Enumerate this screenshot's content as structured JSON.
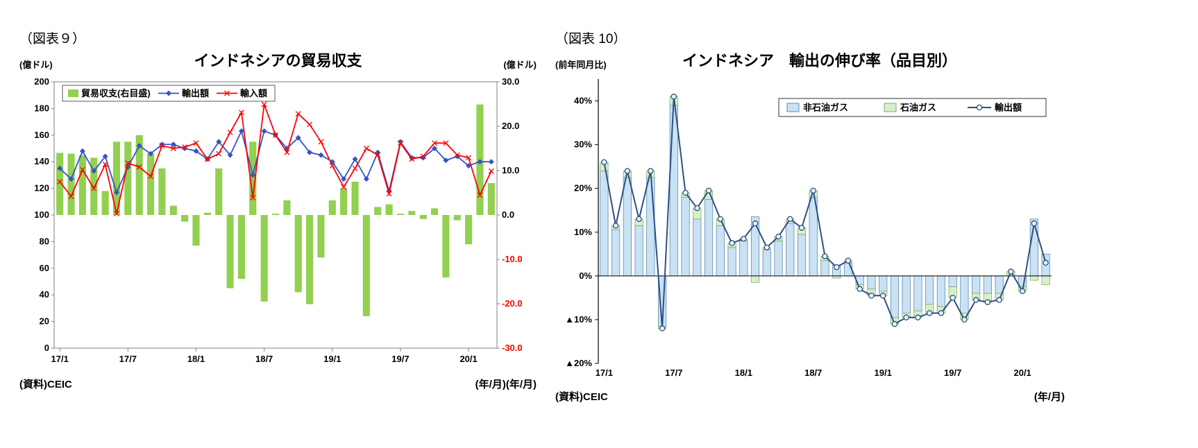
{
  "chart_data": [
    {
      "id": "trade-balance",
      "type": "combo-bar-line",
      "figure_label": "（図表９）",
      "title": "インドネシアの貿易収支",
      "left_axis": {
        "unit": "(億ドル)",
        "min": 0,
        "max": 200,
        "ticks": [
          0,
          20,
          40,
          60,
          80,
          100,
          120,
          140,
          160,
          180,
          200
        ]
      },
      "right_axis": {
        "unit": "(億ドル)",
        "min": -30,
        "max": 30,
        "ticks": [
          30,
          20,
          10,
          0,
          -10,
          -20,
          -30
        ],
        "negative_color": "#FF0000"
      },
      "categories": [
        "17/1",
        "17/2",
        "17/3",
        "17/4",
        "17/5",
        "17/6",
        "17/7",
        "17/8",
        "17/9",
        "17/10",
        "17/11",
        "17/12",
        "18/1",
        "18/2",
        "18/3",
        "18/4",
        "18/5",
        "18/6",
        "18/7",
        "18/8",
        "18/9",
        "18/10",
        "18/11",
        "18/12",
        "19/1",
        "19/2",
        "19/3",
        "19/4",
        "19/5",
        "19/6",
        "19/7",
        "19/8",
        "19/9",
        "19/10",
        "19/11",
        "19/12",
        "20/1",
        "20/2",
        "20/3"
      ],
      "x_ticks": [
        {
          "i": 0,
          "label": "17/1"
        },
        {
          "i": 6,
          "label": "17/7"
        },
        {
          "i": 12,
          "label": "18/1"
        },
        {
          "i": 18,
          "label": "18/7"
        },
        {
          "i": 24,
          "label": "19/1"
        },
        {
          "i": 30,
          "label": "19/7"
        },
        {
          "i": 36,
          "label": "20/1"
        }
      ],
      "series": [
        {
          "name": "貿易収支(右目盛)",
          "type": "bar",
          "axis": "right",
          "color": "#92D050",
          "values": [
            14.0,
            13.8,
            13.5,
            12.9,
            5.4,
            16.5,
            16.5,
            18.0,
            13.8,
            10.5,
            2.1,
            -1.5,
            -6.9,
            0.5,
            10.5,
            -16.5,
            -14.4,
            16.5,
            -19.5,
            0.3,
            3.3,
            -17.4,
            -20.1,
            -9.6,
            3.3,
            6.0,
            7.5,
            -22.8,
            1.8,
            2.4,
            0.3,
            0.9,
            -0.9,
            1.5,
            -14.1,
            -1.2,
            -6.6,
            24.9,
            7.2
          ]
        },
        {
          "name": "輸出額",
          "type": "line",
          "axis": "left",
          "color": "#3354C7",
          "marker": "diamond",
          "values": [
            135,
            127,
            148,
            133,
            144,
            117,
            136,
            152,
            146,
            153,
            153,
            150,
            148,
            142,
            155,
            145,
            163,
            130,
            163,
            160,
            150,
            158,
            147,
            145,
            140,
            127,
            142,
            127,
            147,
            118,
            155,
            143,
            143,
            150,
            141,
            144,
            137,
            140,
            140
          ]
        },
        {
          "name": "輸入額",
          "type": "line",
          "axis": "left",
          "color": "#FF0000",
          "marker": "x",
          "values": [
            125,
            114,
            134,
            120,
            138,
            101,
            139,
            136,
            129,
            152,
            150,
            151,
            154,
            142,
            146,
            162,
            177,
            113,
            183,
            160,
            147,
            176,
            168,
            155,
            137,
            121,
            135,
            150,
            145,
            116,
            154,
            142,
            144,
            154,
            154,
            145,
            143,
            115,
            133
          ]
        }
      ],
      "footer": {
        "source": "(資料)CEIC",
        "axis_note": "(年/月)(年/月)"
      }
    },
    {
      "id": "export-growth",
      "type": "stacked-bar-line",
      "figure_label": "（図表 10）",
      "title": "インドネシア　輸出の伸び率（品目別）",
      "y_axis": {
        "unit": "(前年同月比)",
        "min": -20,
        "max": 45,
        "ticks": [
          {
            "v": 40,
            "label": "40%"
          },
          {
            "v": 30,
            "label": "30%"
          },
          {
            "v": 20,
            "label": "20%"
          },
          {
            "v": 10,
            "label": "10%"
          },
          {
            "v": 0,
            "label": "0%"
          },
          {
            "v": -10,
            "label": "▲10%"
          },
          {
            "v": -20,
            "label": "▲20%"
          }
        ]
      },
      "categories": [
        "17/1",
        "17/2",
        "17/3",
        "17/4",
        "17/5",
        "17/6",
        "17/7",
        "17/8",
        "17/9",
        "17/10",
        "17/11",
        "17/12",
        "18/1",
        "18/2",
        "18/3",
        "18/4",
        "18/5",
        "18/6",
        "18/7",
        "18/8",
        "18/9",
        "18/10",
        "18/11",
        "18/12",
        "19/1",
        "19/2",
        "19/3",
        "19/4",
        "19/5",
        "19/6",
        "19/7",
        "19/8",
        "19/9",
        "19/10",
        "19/11",
        "19/12",
        "20/1",
        "20/2",
        "20/3"
      ],
      "x_ticks": [
        {
          "i": 0,
          "label": "17/1"
        },
        {
          "i": 6,
          "label": "17/7"
        },
        {
          "i": 12,
          "label": "18/1"
        },
        {
          "i": 18,
          "label": "18/7"
        },
        {
          "i": 24,
          "label": "19/1"
        },
        {
          "i": 30,
          "label": "19/7"
        },
        {
          "i": 36,
          "label": "20/1"
        }
      ],
      "series": [
        {
          "name": "非石油ガス",
          "type": "bar",
          "fill": "#C9E2F4",
          "stroke": "#6288AE",
          "values": [
            24,
            10.5,
            22.5,
            11.5,
            22.5,
            -11.5,
            39,
            18,
            13,
            17.5,
            11.5,
            6.5,
            8,
            13.5,
            6,
            8,
            12,
            9.5,
            18,
            3.5,
            2.5,
            3,
            -2,
            -3,
            -3.5,
            -9.5,
            -8.5,
            -8,
            -6.5,
            -7,
            -2.5,
            -8.5,
            -4,
            -4,
            -4,
            0,
            -2.5,
            13,
            5
          ]
        },
        {
          "name": "石油ガス",
          "type": "bar",
          "fill": "#D8EFCE",
          "stroke": "#7FAF62",
          "values": [
            2,
            1,
            1.5,
            1.5,
            1.5,
            -0.5,
            2,
            1,
            2.5,
            2,
            1.5,
            1,
            0.5,
            -1.5,
            0.5,
            1,
            1,
            1.5,
            1.5,
            1,
            -0.5,
            0.5,
            -1,
            -1.5,
            -1,
            -1.5,
            -1,
            -1.5,
            -2,
            -1.5,
            -2.5,
            -1.5,
            -1.5,
            -2,
            -1.5,
            1,
            -1,
            -1,
            -2
          ]
        },
        {
          "name": "輸出額",
          "type": "line",
          "color": "#2D4F81",
          "marker": "circle",
          "values": [
            26,
            11.5,
            24,
            13,
            24,
            -12,
            41,
            19,
            15.5,
            19.5,
            13,
            7.5,
            8.5,
            12,
            6.5,
            9,
            13,
            11,
            19.5,
            4.5,
            2,
            3.5,
            -3,
            -4.5,
            -4.5,
            -11,
            -9.5,
            -9.5,
            -8.5,
            -8.5,
            -5,
            -10,
            -5.5,
            -6,
            -5.5,
            1,
            -3.5,
            12,
            3
          ]
        }
      ],
      "footer": {
        "source": "(資料)CEIC",
        "axis_note": "(年/月)"
      }
    }
  ]
}
